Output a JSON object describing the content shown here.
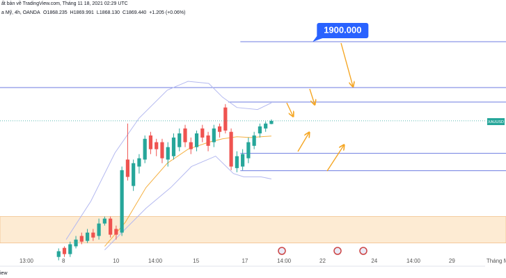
{
  "header": {
    "published": "ất bản về TradingView.com, Tháng 11 18, 2021 02:29 UTC",
    "symbol": "a Mỹ, 4h, OANDA",
    "ohlc": [
      "O1868.235",
      "H1869.991",
      "L1868.130",
      "C1869.440",
      "+1.205 (+0.06%)"
    ],
    "footer": "iew",
    "ticker": "XAUUSD"
  },
  "chart_data": {
    "type": "candlestick",
    "categories": [
      null,
      null,
      null,
      null,
      null,
      null,
      null,
      null,
      null,
      null,
      null,
      null,
      null,
      null,
      null,
      null,
      null,
      null,
      null,
      null,
      null,
      null,
      null,
      null,
      null,
      null,
      null,
      null,
      null,
      null,
      null,
      null,
      null,
      null,
      null,
      null,
      null,
      null
    ],
    "open": [
      1816.9,
      1820.4,
      1818.0,
      1821.0,
      1825.0,
      1823.1,
      1826.3,
      1825.0,
      1829.8,
      1831.7,
      1827.7,
      1826.3,
      1854.5,
      1844.3,
      1851.8,
      1854.5,
      1863.8,
      1861.2,
      1861.2,
      1854.5,
      1855.8,
      1859.3,
      1866.5,
      1861.2,
      1859.3,
      1866.5,
      1863.8,
      1861.2,
      1867.3,
      1874.6,
      1865.2,
      1851.2,
      1851.8,
      1855.0,
      1859.8,
      1864.6,
      1866.5,
      1868.235
    ],
    "high": [
      1820.2,
      1821.0,
      1822.8,
      1825.0,
      1826.3,
      1827.7,
      1827.7,
      1831.7,
      1832.5,
      1832.5,
      1829.0,
      1851.8,
      1868.4,
      1854.5,
      1856.6,
      1863.8,
      1865.2,
      1862.5,
      1862.5,
      1861.2,
      1864.6,
      1866.5,
      1867.9,
      1863.0,
      1865.7,
      1867.9,
      1865.2,
      1867.9,
      1868.4,
      1875.9,
      1866.5,
      1857.7,
      1858.5,
      1863.0,
      1865.2,
      1868.4,
      1869.2,
      1869.991
    ],
    "low": [
      1815.6,
      1816.9,
      1816.9,
      1820.2,
      1821.8,
      1822.3,
      1823.1,
      1823.6,
      1829.0,
      1824.4,
      1823.6,
      1825.0,
      1846.4,
      1842.4,
      1849.1,
      1853.1,
      1856.6,
      1855.8,
      1853.1,
      1851.8,
      1854.5,
      1857.7,
      1859.3,
      1856.6,
      1857.7,
      1861.2,
      1857.7,
      1859.3,
      1863.0,
      1864.6,
      1850.4,
      1849.6,
      1850.4,
      1853.1,
      1858.5,
      1863.0,
      1865.2,
      1868.13
    ],
    "close": [
      1819.1,
      1818.0,
      1821.8,
      1823.6,
      1822.8,
      1826.3,
      1824.4,
      1829.8,
      1831.7,
      1825.5,
      1825.5,
      1850.4,
      1847.8,
      1853.1,
      1855.0,
      1862.5,
      1858.5,
      1858.5,
      1855.0,
      1859.3,
      1863.0,
      1864.6,
      1861.2,
      1858.5,
      1864.6,
      1863.0,
      1859.8,
      1866.5,
      1865.2,
      1865.7,
      1851.8,
      1855.8,
      1856.6,
      1861.2,
      1863.8,
      1867.3,
      1868.4,
      1869.44
    ],
    "up_color": "#26a69a",
    "down_color": "#ef5350",
    "xlim": [
      -10.2,
      77.8
    ],
    "ylim": [
      1813.6,
      1916.1
    ],
    "xticks": [
      {
        "value": -5.6,
        "label": "13:00"
      },
      {
        "value": 0.85,
        "label": "8"
      },
      {
        "value": 10.0,
        "label": "10"
      },
      {
        "value": 16.8,
        "label": "14:00"
      },
      {
        "value": 23.9,
        "label": "15"
      },
      {
        "value": 32.4,
        "label": "17"
      },
      {
        "value": 39.2,
        "label": "14:00"
      },
      {
        "value": 45.9,
        "label": "22"
      },
      {
        "value": 54.9,
        "label": "24"
      },
      {
        "value": 61.7,
        "label": "14:00"
      },
      {
        "value": 68.4,
        "label": "29"
      },
      {
        "value": 76.3,
        "label": "Tháng M"
      }
    ],
    "bands": [
      {
        "color": "#b4b9f0",
        "x": [
          1.3,
          5.6,
          9.8,
          14.0,
          18.9,
          22.5,
          26.1,
          28.5,
          31.0,
          34.6,
          37.0
        ],
        "values": [
          1823.6,
          1838.4,
          1857.1,
          1870.5,
          1881.3,
          1884.7,
          1883.9,
          1878.6,
          1874.6,
          1873.8,
          1876.4
        ]
      },
      {
        "color": "#b4b9f0",
        "x": [
          8.0,
          11.6,
          15.2,
          19.5,
          23.1,
          27.3,
          30.4,
          32.2,
          35.2,
          37.0
        ],
        "values": [
          1819.6,
          1827.7,
          1835.7,
          1843.7,
          1851.8,
          1855.8,
          1849.1,
          1847.8,
          1847.8,
          1847.0
        ]
      },
      {
        "color": "#f5b041",
        "x": [
          8.0,
          11.6,
          15.2,
          18.9,
          22.5,
          26.1,
          28.5,
          31.0,
          33.4,
          37.0
        ],
        "values": [
          1821.0,
          1830.3,
          1843.7,
          1853.1,
          1858.5,
          1861.2,
          1862.5,
          1863.3,
          1863.0,
          1863.6
        ]
      }
    ],
    "levels": [
      {
        "value": 1900.0,
        "x0": 31.6,
        "label": "1900.000"
      },
      {
        "value": 1882.3,
        "x0": -10.2
      },
      {
        "value": 1876.7,
        "x0": 29.5
      },
      {
        "value": 1856.9,
        "x0": 31.6
      },
      {
        "value": 1850.2,
        "x0": 31.6
      }
    ],
    "level_color": "#6c7be0",
    "zone": [
      1822.3,
      1832.5
    ],
    "zone_color": "#fdebd3"
  }
}
